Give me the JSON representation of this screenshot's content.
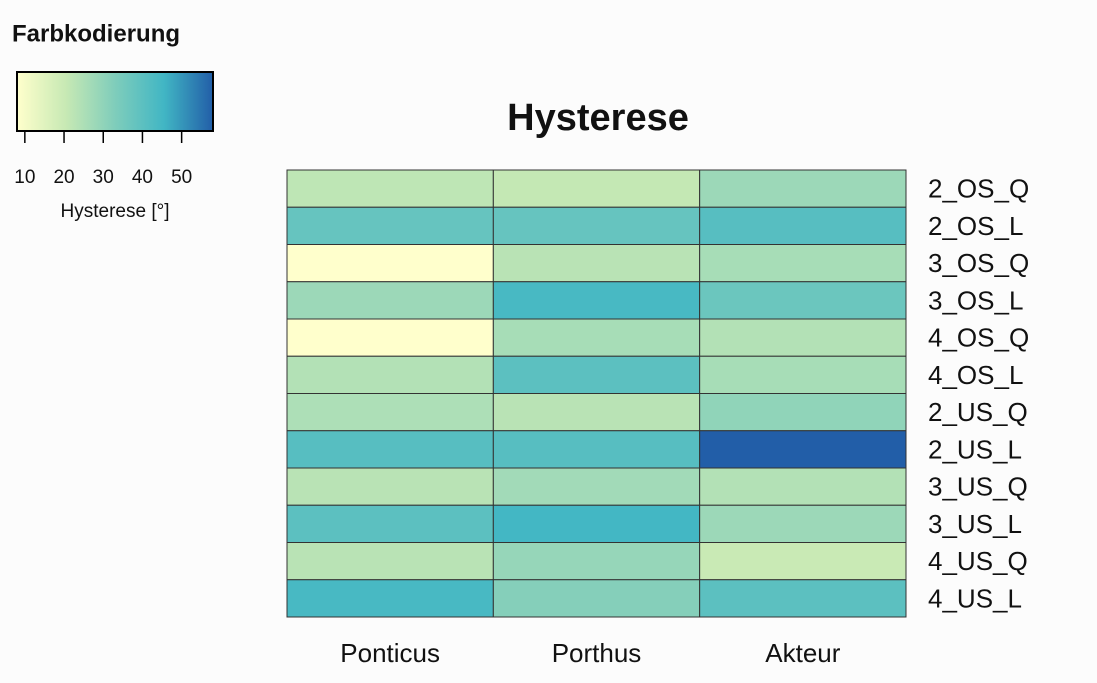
{
  "chart_data": {
    "type": "heatmap",
    "title": "Hysterese",
    "x_categories": [
      "Ponticus",
      "Porthus",
      "Akteur"
    ],
    "y_categories": [
      "2_OS_Q",
      "2_OS_L",
      "3_OS_Q",
      "3_OS_L",
      "4_OS_Q",
      "4_OS_L",
      "2_US_Q",
      "2_US_L",
      "3_US_Q",
      "3_US_L",
      "4_US_Q",
      "4_US_L"
    ],
    "values": [
      [
        22,
        21,
        28
      ],
      [
        38,
        38,
        41
      ],
      [
        8,
        23,
        26
      ],
      [
        28,
        44,
        37
      ],
      [
        8,
        26,
        24
      ],
      [
        24,
        40,
        26
      ],
      [
        25,
        23,
        30
      ],
      [
        41,
        41,
        58
      ],
      [
        23,
        27,
        24
      ],
      [
        40,
        45,
        28
      ],
      [
        23,
        29,
        20
      ],
      [
        44,
        32,
        40
      ]
    ],
    "colorscale": [
      "#ffffcc",
      "#c7e9b4",
      "#7fcdbb",
      "#41b6c4",
      "#225ea8"
    ],
    "colorbar": {
      "title": "Farbkodierung",
      "label": "Hysterese [°]",
      "clim": [
        8,
        58
      ],
      "ticks": [
        10,
        20,
        30,
        40,
        50
      ]
    }
  }
}
